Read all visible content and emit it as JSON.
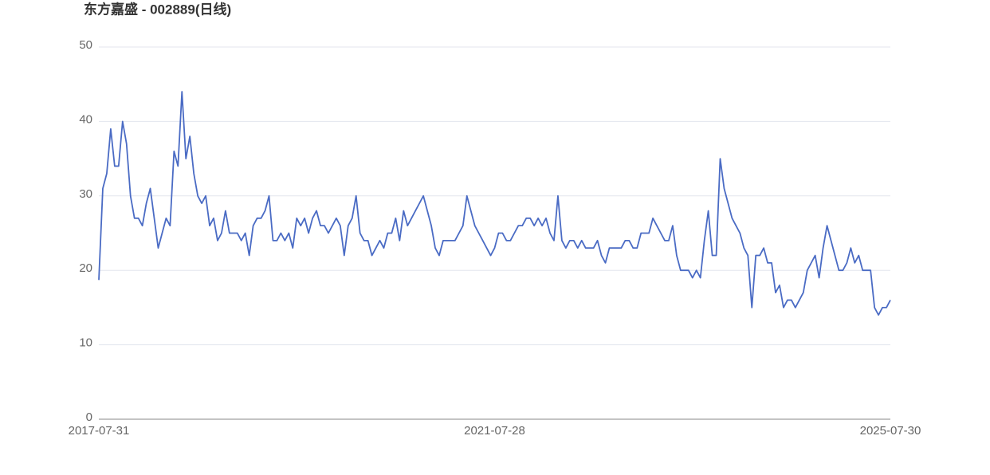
{
  "chart_data": {
    "type": "line",
    "title": "东方嘉盛 - 002889(日线)",
    "categories": [
      "2017-07-31",
      null,
      null,
      null,
      null,
      null,
      null,
      null,
      null,
      null,
      null,
      null,
      null,
      null,
      null,
      null,
      null,
      null,
      null,
      null,
      null,
      null,
      null,
      null,
      null,
      null,
      null,
      null,
      null,
      null,
      null,
      null,
      null,
      null,
      null,
      null,
      null,
      null,
      null,
      null,
      null,
      null,
      null,
      null,
      null,
      null,
      null,
      null,
      null,
      null,
      null,
      null,
      null,
      null,
      null,
      null,
      null,
      null,
      null,
      null,
      null,
      null,
      null,
      null,
      null,
      null,
      null,
      null,
      null,
      null,
      null,
      null,
      null,
      null,
      null,
      null,
      null,
      null,
      null,
      null,
      null,
      null,
      null,
      null,
      null,
      null,
      null,
      null,
      null,
      null,
      null,
      null,
      null,
      null,
      null,
      null,
      null,
      null,
      null,
      null,
      "2021-07-28",
      null,
      null,
      null,
      null,
      null,
      null,
      null,
      null,
      null,
      null,
      null,
      null,
      null,
      null,
      null,
      null,
      null,
      null,
      null,
      null,
      null,
      null,
      null,
      null,
      null,
      null,
      null,
      null,
      null,
      null,
      null,
      null,
      null,
      null,
      null,
      null,
      null,
      null,
      null,
      null,
      null,
      null,
      null,
      null,
      null,
      null,
      null,
      null,
      null,
      null,
      null,
      null,
      null,
      null,
      null,
      null,
      null,
      null,
      null,
      null,
      null,
      null,
      null,
      null,
      null,
      null,
      null,
      null,
      null,
      null,
      null,
      null,
      null,
      null,
      null,
      null,
      null,
      null,
      null,
      null,
      null,
      null,
      null,
      null,
      null,
      null,
      null,
      null,
      null,
      null,
      null,
      null,
      null,
      null,
      null,
      null,
      null,
      null,
      null,
      "2025-07-30"
    ],
    "values": [
      18.7,
      31,
      33,
      39,
      34,
      34,
      40,
      37,
      30,
      27,
      27,
      26,
      29,
      31,
      27,
      23,
      25,
      27,
      26,
      36,
      34,
      44,
      35,
      38,
      33,
      30,
      29,
      30,
      26,
      27,
      24,
      25,
      28,
      25,
      25,
      25,
      24,
      25,
      22,
      26,
      27,
      27,
      28,
      30,
      24,
      24,
      25,
      24,
      25,
      23,
      27,
      26,
      27,
      25,
      27,
      28,
      26,
      26,
      25,
      26,
      27,
      26,
      22,
      26,
      27,
      30,
      25,
      24,
      24,
      22,
      23,
      24,
      23,
      25,
      25,
      27,
      24,
      28,
      26,
      27,
      28,
      29,
      30,
      28,
      26,
      23,
      22,
      24,
      24,
      24,
      24,
      25,
      26,
      30,
      28,
      26,
      25,
      24,
      23,
      22,
      23,
      25,
      25,
      24,
      24,
      25,
      26,
      26,
      27,
      27,
      26,
      27,
      26,
      27,
      25,
      24,
      30,
      24,
      23,
      24,
      24,
      23,
      24,
      23,
      23,
      23,
      24,
      22,
      21,
      23,
      23,
      23,
      23,
      24,
      24,
      23,
      23,
      25,
      25,
      25,
      27,
      26,
      25,
      24,
      24,
      26,
      22,
      20,
      20,
      20,
      19,
      20,
      19,
      24,
      28,
      22,
      22,
      35,
      31,
      29,
      27,
      26,
      25,
      23,
      22,
      15,
      22,
      22,
      23,
      21,
      21,
      17,
      18,
      15,
      16,
      16,
      15,
      16,
      17,
      20,
      21,
      22,
      19,
      23,
      26,
      24,
      22,
      20,
      20,
      21,
      23,
      21,
      22,
      20,
      20,
      20,
      15,
      14,
      15,
      15,
      16
    ],
    "color": "#4a6bc4",
    "ylim": [
      0,
      50
    ],
    "yticks": [
      0,
      10,
      20,
      30,
      40,
      50
    ],
    "grid": true
  }
}
